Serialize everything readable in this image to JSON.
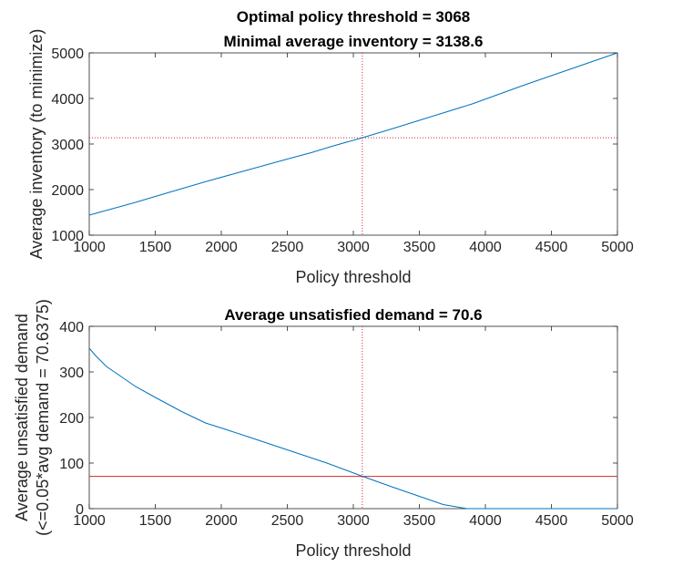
{
  "chart_data": [
    {
      "type": "line",
      "title_lines": [
        "Optimal policy threshold = 3068",
        "Minimal average inventory = 3138.6"
      ],
      "xlabel": "Policy threshold",
      "ylabel_lines": [
        "Average inventory (to minimize)"
      ],
      "xlim": [
        1000,
        5000
      ],
      "ylim": [
        1000,
        5000
      ],
      "xticks": [
        1000,
        1500,
        2000,
        2500,
        3000,
        3500,
        4000,
        4500,
        5000
      ],
      "yticks": [
        1000,
        2000,
        3000,
        4000,
        5000
      ],
      "series": [
        {
          "color": "#0072bd",
          "x": [
            1000,
            1100,
            1200,
            1350,
            1500,
            1700,
            1900,
            2100,
            2300,
            2500,
            2680,
            2850,
            3068,
            3300,
            3500,
            3700,
            3900,
            4100,
            4300,
            4500,
            4700,
            5000
          ],
          "y": [
            1440,
            1520,
            1600,
            1720,
            1850,
            2020,
            2190,
            2350,
            2510,
            2670,
            2810,
            2960,
            3139,
            3340,
            3520,
            3700,
            3880,
            4090,
            4300,
            4500,
            4700,
            5000
          ]
        }
      ],
      "vline": {
        "x": 3068,
        "color": "#d62728",
        "style": "dotted"
      },
      "hline": {
        "y": 3138.6,
        "color": "#d62728",
        "style": "dotted"
      }
    },
    {
      "type": "line",
      "title_lines": [
        "Average unsatisfied demand = 70.6"
      ],
      "xlabel": "Policy threshold",
      "ylabel_lines": [
        "Average unsatisfied demand",
        "(<=0.05*avg demand = 70.6375)"
      ],
      "xlim": [
        1000,
        5000
      ],
      "ylim": [
        0,
        400
      ],
      "xticks": [
        1000,
        1500,
        2000,
        2500,
        3000,
        3500,
        4000,
        4500,
        5000
      ],
      "yticks": [
        0,
        100,
        200,
        300,
        400
      ],
      "series": [
        {
          "color": "#0072bd",
          "x": [
            1000,
            1050,
            1130,
            1250,
            1350,
            1500,
            1700,
            1880,
            2000,
            2200,
            2500,
            2800,
            3068,
            3300,
            3500,
            3680,
            3800,
            3860,
            4000,
            4500,
            5000
          ],
          "y": [
            352,
            335,
            312,
            288,
            268,
            244,
            213,
            188,
            177,
            158,
            129,
            100,
            71,
            47,
            27,
            9,
            3,
            0,
            0,
            0,
            0
          ]
        }
      ],
      "vline": {
        "x": 3068,
        "color": "#d62728",
        "style": "dotted"
      },
      "hline": {
        "y": 70.6375,
        "color": "#d62728",
        "style": "solid"
      }
    }
  ]
}
